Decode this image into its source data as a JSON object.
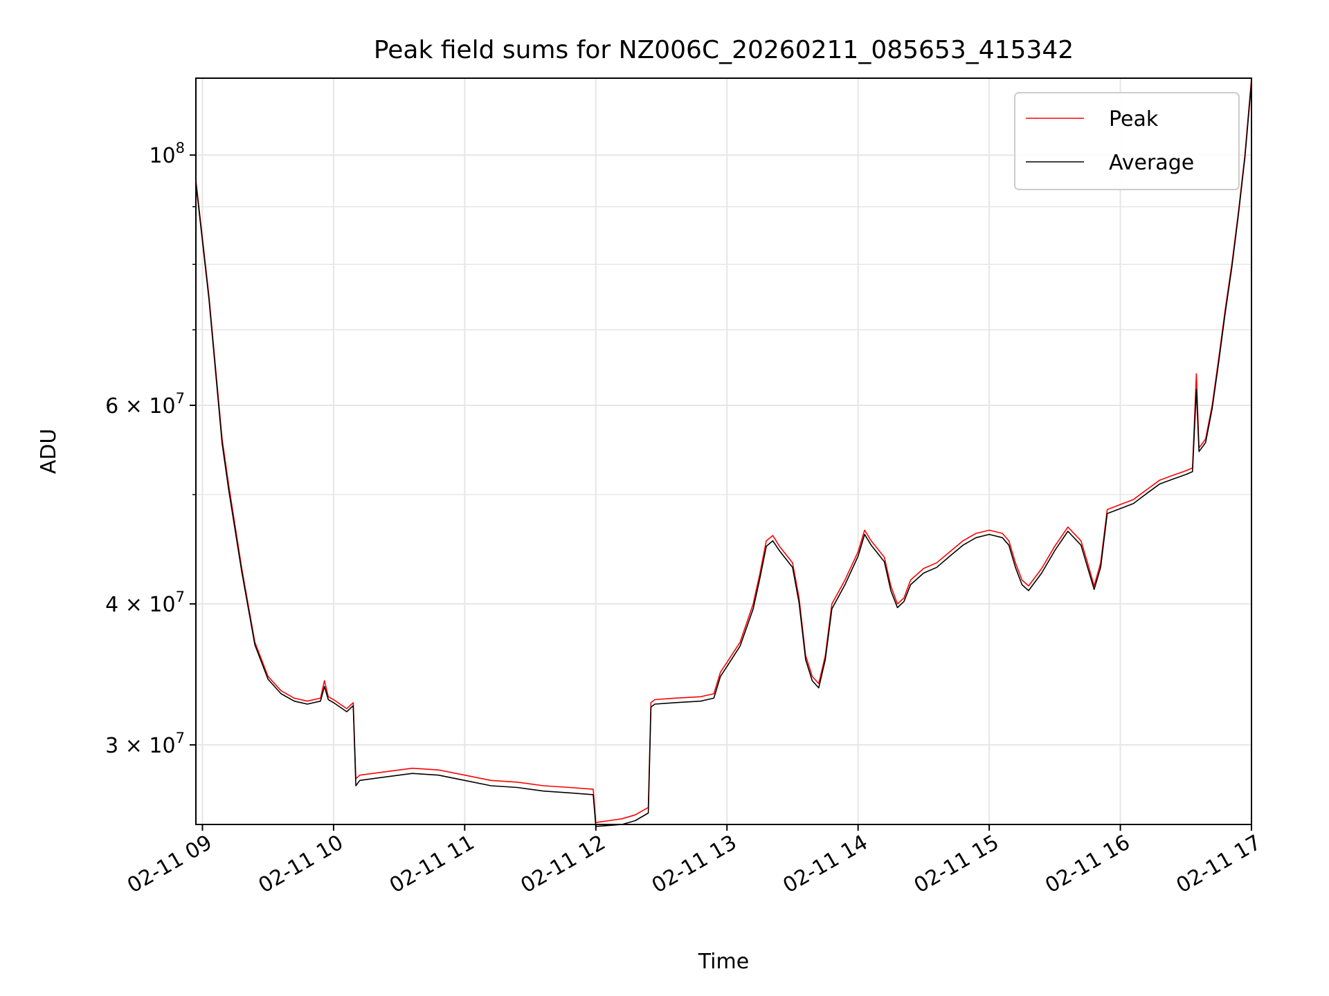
{
  "chart_data": {
    "type": "line",
    "title": "Peak field sums for NZ006C_20260211_085653_415342",
    "xlabel": "Time",
    "ylabel": "ADU",
    "yscale": "log",
    "xlim": [
      8.95,
      17.0
    ],
    "ylim": [
      25500000,
      117000000
    ],
    "grid": true,
    "legend_position": "top-right",
    "x_ticks": [
      {
        "value": 9,
        "label": "02-11 09"
      },
      {
        "value": 10,
        "label": "02-11 10"
      },
      {
        "value": 11,
        "label": "02-11 11"
      },
      {
        "value": 12,
        "label": "02-11 12"
      },
      {
        "value": 13,
        "label": "02-11 13"
      },
      {
        "value": 14,
        "label": "02-11 14"
      },
      {
        "value": 15,
        "label": "02-11 15"
      },
      {
        "value": 16,
        "label": "02-11 16"
      },
      {
        "value": 17,
        "label": "02-11 17"
      }
    ],
    "y_major_ticks": [
      {
        "value": 100000000,
        "base": "10",
        "exp": "8",
        "coef": ""
      },
      {
        "value": 60000000,
        "base": "10",
        "exp": "7",
        "coef": "6 × "
      },
      {
        "value": 40000000,
        "base": "10",
        "exp": "7",
        "coef": "4 × "
      },
      {
        "value": 30000000,
        "base": "10",
        "exp": "7",
        "coef": "3 × "
      }
    ],
    "y_minor_ticks": [
      50000000,
      70000000,
      80000000,
      90000000
    ],
    "series": [
      {
        "name": "Peak",
        "color": "#ff0000",
        "x": [
          8.95,
          9.05,
          9.15,
          9.2,
          9.3,
          9.4,
          9.5,
          9.6,
          9.7,
          9.8,
          9.9,
          9.93,
          9.96,
          10.0,
          10.1,
          10.15,
          10.17,
          10.2,
          10.4,
          10.6,
          10.8,
          11.0,
          11.2,
          11.4,
          11.6,
          11.8,
          11.98,
          12.0,
          12.1,
          12.2,
          12.3,
          12.4,
          12.42,
          12.45,
          12.6,
          12.8,
          12.9,
          12.95,
          13.0,
          13.1,
          13.2,
          13.25,
          13.3,
          13.35,
          13.4,
          13.5,
          13.55,
          13.6,
          13.65,
          13.7,
          13.75,
          13.8,
          13.9,
          14.0,
          14.05,
          14.1,
          14.2,
          14.25,
          14.3,
          14.35,
          14.4,
          14.5,
          14.6,
          14.7,
          14.8,
          14.9,
          15.0,
          15.1,
          15.15,
          15.2,
          15.25,
          15.3,
          15.4,
          15.5,
          15.6,
          15.7,
          15.75,
          15.8,
          15.85,
          15.9,
          16.0,
          16.1,
          16.2,
          16.3,
          16.4,
          16.5,
          16.55,
          16.58,
          16.6,
          16.65,
          16.7,
          16.75,
          16.8,
          16.85,
          16.9,
          16.95,
          17.0
        ],
        "values": [
          95000000,
          75000000,
          56000000,
          51000000,
          43000000,
          37000000,
          34500000,
          33500000,
          33000000,
          32800000,
          33000000,
          34200000,
          33100000,
          32900000,
          32300000,
          32700000,
          28000000,
          28200000,
          28400000,
          28600000,
          28500000,
          28200000,
          27900000,
          27800000,
          27600000,
          27500000,
          27400000,
          25600000,
          25700000,
          25800000,
          26000000,
          26400000,
          32700000,
          32900000,
          33000000,
          33100000,
          33300000,
          34800000,
          35500000,
          37000000,
          40000000,
          42500000,
          45500000,
          46000000,
          45000000,
          43500000,
          40500000,
          36000000,
          34500000,
          34000000,
          36000000,
          40000000,
          42000000,
          44500000,
          46500000,
          45500000,
          44000000,
          41500000,
          40000000,
          40500000,
          42000000,
          43000000,
          43500000,
          44500000,
          45500000,
          46200000,
          46500000,
          46200000,
          45500000,
          43500000,
          42000000,
          41500000,
          43000000,
          45000000,
          46800000,
          45500000,
          43500000,
          41500000,
          43500000,
          48500000,
          49000000,
          49500000,
          50500000,
          51500000,
          52000000,
          52500000,
          52800000,
          64000000,
          55000000,
          56000000,
          60000000,
          66000000,
          73000000,
          80000000,
          89000000,
          100000000,
          117000000
        ]
      },
      {
        "name": "Average",
        "color": "#000000",
        "x": [
          8.95,
          9.05,
          9.15,
          9.2,
          9.3,
          9.4,
          9.5,
          9.6,
          9.7,
          9.8,
          9.9,
          9.93,
          9.96,
          10.0,
          10.1,
          10.15,
          10.17,
          10.2,
          10.4,
          10.6,
          10.8,
          11.0,
          11.2,
          11.4,
          11.6,
          11.8,
          11.98,
          12.0,
          12.1,
          12.2,
          12.3,
          12.4,
          12.42,
          12.45,
          12.6,
          12.8,
          12.9,
          12.95,
          13.0,
          13.1,
          13.2,
          13.25,
          13.3,
          13.35,
          13.4,
          13.5,
          13.55,
          13.6,
          13.65,
          13.7,
          13.75,
          13.8,
          13.9,
          14.0,
          14.05,
          14.1,
          14.2,
          14.25,
          14.3,
          14.35,
          14.4,
          14.5,
          14.6,
          14.7,
          14.8,
          14.9,
          15.0,
          15.1,
          15.15,
          15.2,
          15.25,
          15.3,
          15.4,
          15.5,
          15.6,
          15.7,
          15.75,
          15.8,
          15.85,
          15.9,
          16.0,
          16.1,
          16.2,
          16.3,
          16.4,
          16.5,
          16.55,
          16.58,
          16.6,
          16.65,
          16.7,
          16.75,
          16.8,
          16.85,
          16.9,
          16.95,
          17.0
        ],
        "values": [
          94500000,
          74500000,
          55500000,
          50500000,
          42700000,
          36800000,
          34300000,
          33300000,
          32800000,
          32600000,
          32800000,
          33800000,
          32900000,
          32700000,
          32100000,
          32500000,
          27600000,
          27900000,
          28100000,
          28300000,
          28200000,
          27900000,
          27600000,
          27500000,
          27300000,
          27200000,
          27100000,
          25400000,
          25450000,
          25500000,
          25700000,
          26100000,
          32400000,
          32600000,
          32700000,
          32800000,
          33000000,
          34500000,
          35200000,
          36700000,
          39600000,
          42100000,
          45000000,
          45500000,
          44600000,
          43100000,
          40100000,
          35700000,
          34200000,
          33700000,
          35700000,
          39600000,
          41600000,
          44100000,
          46100000,
          45100000,
          43600000,
          41100000,
          39700000,
          40200000,
          41600000,
          42600000,
          43100000,
          44100000,
          45100000,
          45800000,
          46100000,
          45800000,
          45100000,
          43100000,
          41600000,
          41100000,
          42600000,
          44600000,
          46400000,
          45100000,
          43100000,
          41200000,
          43100000,
          48100000,
          48600000,
          49100000,
          50100000,
          51100000,
          51600000,
          52100000,
          52400000,
          62000000,
          54600000,
          55600000,
          59600000,
          65500000,
          72500000,
          79500000,
          88500000,
          99500000,
          116000000
        ]
      }
    ]
  }
}
